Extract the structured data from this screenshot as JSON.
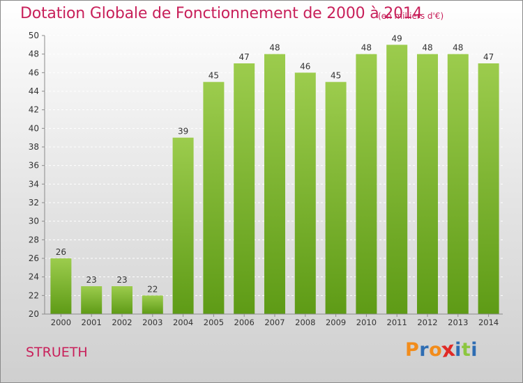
{
  "header": {
    "title": "Dotation Globale de Fonctionnement de 2000 à 2014",
    "unit": "(en milliers d'€)"
  },
  "footer": {
    "commune": "STRUETH",
    "logo_text": "Proxiti"
  },
  "colors": {
    "title": "#c8205a",
    "bar_top": "#9ccc4d",
    "bar_bottom": "#5e9b16",
    "grid": "#ffffff",
    "axis": "#8a8a8a",
    "logo_letters": [
      "#f28c1b",
      "#2e6db3",
      "#f28c1b",
      "#e02a26",
      "#2e6db3",
      "#8cc63f",
      "#2e6db3"
    ]
  },
  "chart_data": {
    "type": "bar",
    "title": "Dotation Globale de Fonctionnement de 2000 à 2014",
    "subtitle": "(en milliers d'€)",
    "xlabel": "",
    "ylabel": "",
    "ylim": [
      20,
      50
    ],
    "ytick_step": 2,
    "grid": true,
    "categories": [
      "2000",
      "2001",
      "2002",
      "2003",
      "2004",
      "2005",
      "2006",
      "2007",
      "2008",
      "2009",
      "2010",
      "2011",
      "2012",
      "2013",
      "2014"
    ],
    "values": [
      26,
      23,
      23,
      22,
      39,
      45,
      47,
      48,
      46,
      45,
      48,
      49,
      48,
      48,
      47
    ]
  }
}
